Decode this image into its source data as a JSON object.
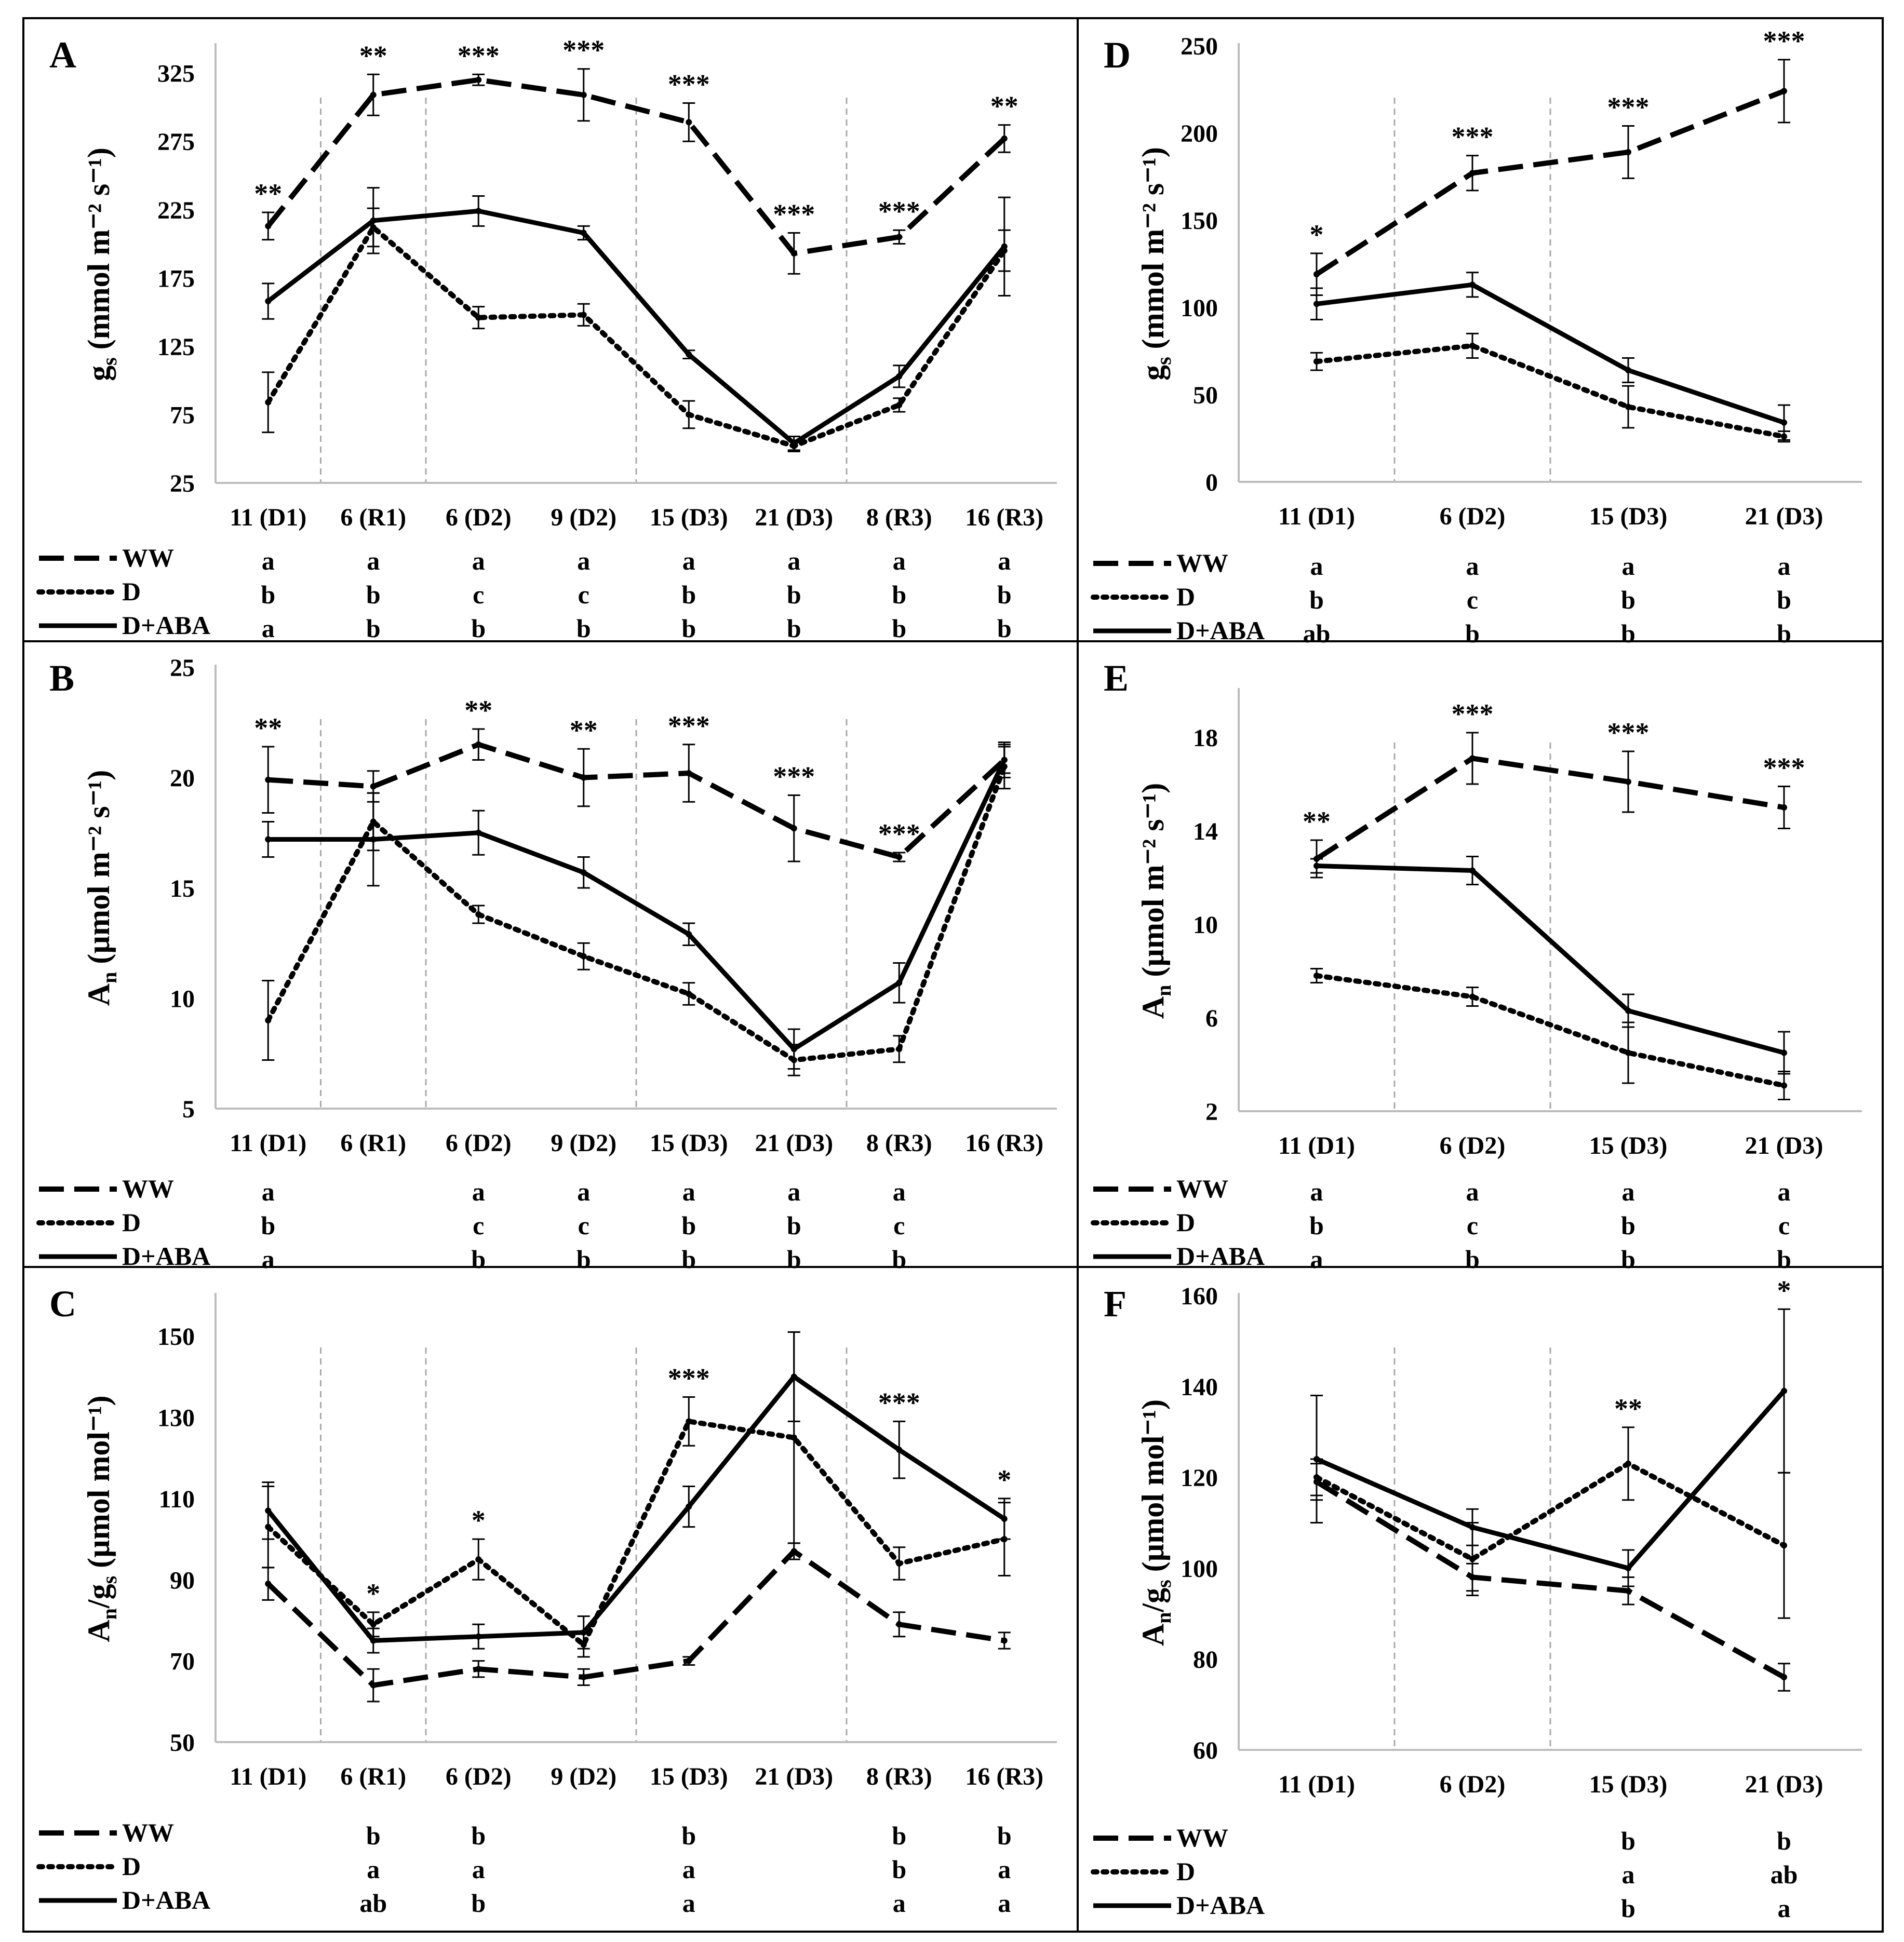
{
  "figure": {
    "legend_series": [
      {
        "name": "WW",
        "style": "dashed"
      },
      {
        "name": "D",
        "style": "dotted"
      },
      {
        "name": "D+ABA",
        "style": "solid"
      }
    ]
  },
  "chart_data": [
    {
      "panel": "A",
      "type": "line",
      "ylabel_main": "g",
      "ylabel_sub": "s",
      "ylabel_unit": "(mmol m⁻² s⁻¹)",
      "ylim": [
        25,
        345
      ],
      "yticks": [
        25,
        75,
        125,
        175,
        225,
        275,
        325
      ],
      "categories": [
        "11 (D1)",
        "6 (R1)",
        "6 (D2)",
        "9 (D2)",
        "15 (D3)",
        "21 (D3)",
        "8 (R3)",
        "16 (R3)"
      ],
      "phase_dividers": [
        0.5,
        1.5,
        3.5,
        5.5
      ],
      "series": [
        {
          "name": "WW",
          "style": "dashed",
          "values": [
            213,
            309,
            320,
            309,
            289,
            193,
            205,
            277
          ],
          "errors": [
            10,
            15,
            4,
            19,
            14,
            15,
            5,
            10
          ],
          "letters": [
            "a",
            "a",
            "a",
            "a",
            "a",
            "a",
            "a",
            "a"
          ]
        },
        {
          "name": "D",
          "style": "dotted",
          "values": [
            84,
            212,
            146,
            148,
            75,
            52,
            82,
            195
          ],
          "errors": [
            22,
            14,
            8,
            8,
            10,
            4,
            5,
            15
          ],
          "letters": [
            "b",
            "b",
            "c",
            "c",
            "b",
            "b",
            "b",
            "b"
          ]
        },
        {
          "name": "D+ABA",
          "style": "solid",
          "values": [
            158,
            217,
            224,
            208,
            119,
            54,
            103,
            198
          ],
          "errors": [
            13,
            24,
            11,
            5,
            3,
            5,
            8,
            36
          ],
          "letters": [
            "a",
            "b",
            "b",
            "b",
            "b",
            "b",
            "b",
            "b"
          ]
        }
      ],
      "significance": [
        "**",
        "**",
        "***",
        "***",
        "***",
        "***",
        "***",
        "**"
      ]
    },
    {
      "panel": "B",
      "type": "line",
      "ylabel_main": "A",
      "ylabel_sub": "n",
      "ylabel_unit": "(µmol m⁻² s⁻¹)",
      "ylim": [
        5,
        25
      ],
      "yticks": [
        5,
        10,
        15,
        20,
        25
      ],
      "categories": [
        "11 (D1)",
        "6 (R1)",
        "6 (D2)",
        "9 (D2)",
        "15 (D3)",
        "21 (D3)",
        "8 (R3)",
        "16 (R3)"
      ],
      "phase_dividers": [
        0.5,
        1.5,
        3.5,
        5.5
      ],
      "series": [
        {
          "name": "WW",
          "style": "dashed",
          "values": [
            19.9,
            19.6,
            21.5,
            20.0,
            20.2,
            17.7,
            16.4,
            20.8
          ],
          "errors": [
            1.5,
            0.7,
            0.7,
            1.3,
            1.3,
            1.5,
            0.2,
            0.8
          ],
          "letters": [
            "a",
            "",
            "a",
            "a",
            "a",
            "a",
            "a",
            ""
          ]
        },
        {
          "name": "D",
          "style": "dotted",
          "values": [
            9.0,
            18.0,
            13.8,
            11.9,
            10.2,
            7.2,
            7.7,
            20.5
          ],
          "errors": [
            1.8,
            1.3,
            0.4,
            0.6,
            0.5,
            0.7,
            0.6,
            1.0
          ],
          "letters": [
            "b",
            "",
            "c",
            "c",
            "b",
            "b",
            "c",
            ""
          ]
        },
        {
          "name": "D+ABA",
          "style": "solid",
          "values": [
            17.2,
            17.2,
            17.5,
            15.7,
            12.9,
            7.7,
            10.7,
            20.8
          ],
          "errors": [
            0.8,
            2.1,
            1.0,
            0.7,
            0.5,
            0.9,
            0.9,
            0.6
          ],
          "letters": [
            "a",
            "",
            "b",
            "b",
            "b",
            "b",
            "b",
            ""
          ]
        }
      ],
      "significance": [
        "**",
        "",
        "**",
        "**",
        "***",
        "***",
        "***",
        ""
      ]
    },
    {
      "panel": "C",
      "type": "line",
      "ylabel_main": "A",
      "ylabel_sub": "n",
      "ylabel_mid": "/g",
      "ylabel_sub2": "s",
      "ylabel_unit": "(µmol mol⁻¹)",
      "ylim": [
        50,
        160
      ],
      "yticks": [
        50,
        70,
        90,
        110,
        130,
        150
      ],
      "categories": [
        "11 (D1)",
        "6 (R1)",
        "6 (D2)",
        "9 (D2)",
        "15 (D3)",
        "21 (D3)",
        "8 (R3)",
        "16 (R3)"
      ],
      "phase_dividers": [
        0.5,
        1.5,
        3.5,
        5.5
      ],
      "series": [
        {
          "name": "WW",
          "style": "dashed",
          "values": [
            89,
            64,
            68,
            66,
            70,
            97,
            79,
            75
          ],
          "errors": [
            4,
            4,
            2,
            2,
            1,
            2,
            3,
            2
          ],
          "letters": [
            "",
            "b",
            "b",
            "",
            "b",
            "",
            "b",
            "b"
          ]
        },
        {
          "name": "D",
          "style": "dotted",
          "values": [
            103,
            79,
            95,
            74,
            129,
            125,
            94,
            100
          ],
          "errors": [
            10,
            3,
            5,
            3,
            6,
            26,
            4,
            9
          ],
          "letters": [
            "",
            "a",
            "a",
            "",
            "a",
            "",
            "b",
            "a"
          ]
        },
        {
          "name": "D+ABA",
          "style": "solid",
          "values": [
            107,
            75,
            76,
            77,
            108,
            140,
            122,
            105
          ],
          "errors": [
            7,
            3,
            3,
            4,
            5,
            11,
            7,
            5
          ],
          "letters": [
            "",
            "ab",
            "b",
            "",
            "a",
            "",
            "a",
            "a"
          ]
        }
      ],
      "significance": [
        "",
        "*",
        "*",
        "",
        "***",
        "",
        "***",
        "*"
      ]
    },
    {
      "panel": "D",
      "type": "line",
      "ylabel_main": "g",
      "ylabel_sub": "s",
      "ylabel_unit": "(mmol m⁻² s⁻¹)",
      "ylim": [
        0,
        250
      ],
      "yticks": [
        0,
        50,
        100,
        150,
        200,
        250
      ],
      "categories": [
        "11 (D1)",
        "6 (D2)",
        "15 (D3)",
        "21 (D3)"
      ],
      "phase_dividers": [
        0.5,
        1.5
      ],
      "series": [
        {
          "name": "WW",
          "style": "dashed",
          "values": [
            119,
            177,
            189,
            224
          ],
          "errors": [
            12,
            10,
            15,
            18
          ],
          "letters": [
            "a",
            "a",
            "a",
            "a"
          ]
        },
        {
          "name": "D",
          "style": "dotted",
          "values": [
            69,
            78,
            43,
            26
          ],
          "errors": [
            5,
            7,
            12,
            3
          ],
          "letters": [
            "b",
            "c",
            "b",
            "b"
          ]
        },
        {
          "name": "D+ABA",
          "style": "solid",
          "values": [
            102,
            113,
            64,
            34
          ],
          "errors": [
            9,
            7,
            7,
            10
          ],
          "letters": [
            "ab",
            "b",
            "b",
            "b"
          ]
        }
      ],
      "significance": [
        "*",
        "***",
        "***",
        "***"
      ]
    },
    {
      "panel": "E",
      "type": "line",
      "ylabel_main": "A",
      "ylabel_sub": "n",
      "ylabel_unit": "(µmol m⁻² s⁻¹)",
      "ylim": [
        2,
        20
      ],
      "yticks": [
        2,
        6,
        10,
        14,
        18
      ],
      "categories": [
        "11 (D1)",
        "6 (D2)",
        "15 (D3)",
        "21 (D3)"
      ],
      "phase_dividers": [
        0.5,
        1.5
      ],
      "series": [
        {
          "name": "WW",
          "style": "dashed",
          "values": [
            12.8,
            17.1,
            16.1,
            15.0
          ],
          "errors": [
            0.8,
            1.1,
            1.3,
            0.9
          ],
          "letters": [
            "a",
            "a",
            "a",
            "a"
          ]
        },
        {
          "name": "D",
          "style": "dotted",
          "values": [
            7.8,
            6.9,
            4.5,
            3.1
          ],
          "errors": [
            0.3,
            0.4,
            1.3,
            0.6
          ],
          "letters": [
            "b",
            "c",
            "b",
            "c"
          ]
        },
        {
          "name": "D+ABA",
          "style": "solid",
          "values": [
            12.5,
            12.3,
            6.3,
            4.5
          ],
          "errors": [
            0.3,
            0.6,
            0.7,
            0.9
          ],
          "letters": [
            "a",
            "b",
            "b",
            "b"
          ]
        }
      ],
      "significance": [
        "**",
        "***",
        "***",
        "***"
      ]
    },
    {
      "panel": "F",
      "type": "line",
      "ylabel_main": "A",
      "ylabel_sub": "n",
      "ylabel_mid": "/g",
      "ylabel_sub2": "s",
      "ylabel_unit": "(µmol mol⁻¹)",
      "ylim": [
        60,
        160
      ],
      "yticks": [
        60,
        80,
        100,
        120,
        140,
        160
      ],
      "categories": [
        "11 (D1)",
        "6 (D2)",
        "15 (D3)",
        "21 (D3)"
      ],
      "phase_dividers": [
        0.5,
        1.5
      ],
      "series": [
        {
          "name": "WW",
          "style": "dashed",
          "values": [
            119,
            98,
            95,
            76
          ],
          "errors": [
            4,
            3,
            3,
            3
          ],
          "letters": [
            "",
            "",
            "b",
            "b"
          ]
        },
        {
          "name": "D",
          "style": "dotted",
          "values": [
            120,
            102,
            123,
            105
          ],
          "errors": [
            4,
            8,
            8,
            16
          ],
          "letters": [
            "",
            "",
            "a",
            "ab"
          ]
        },
        {
          "name": "D+ABA",
          "style": "solid",
          "values": [
            124,
            109,
            100,
            139
          ],
          "errors": [
            14,
            4,
            4,
            18
          ],
          "letters": [
            "",
            "",
            "b",
            "a"
          ]
        }
      ],
      "significance": [
        "",
        "",
        "**",
        "*"
      ]
    }
  ]
}
